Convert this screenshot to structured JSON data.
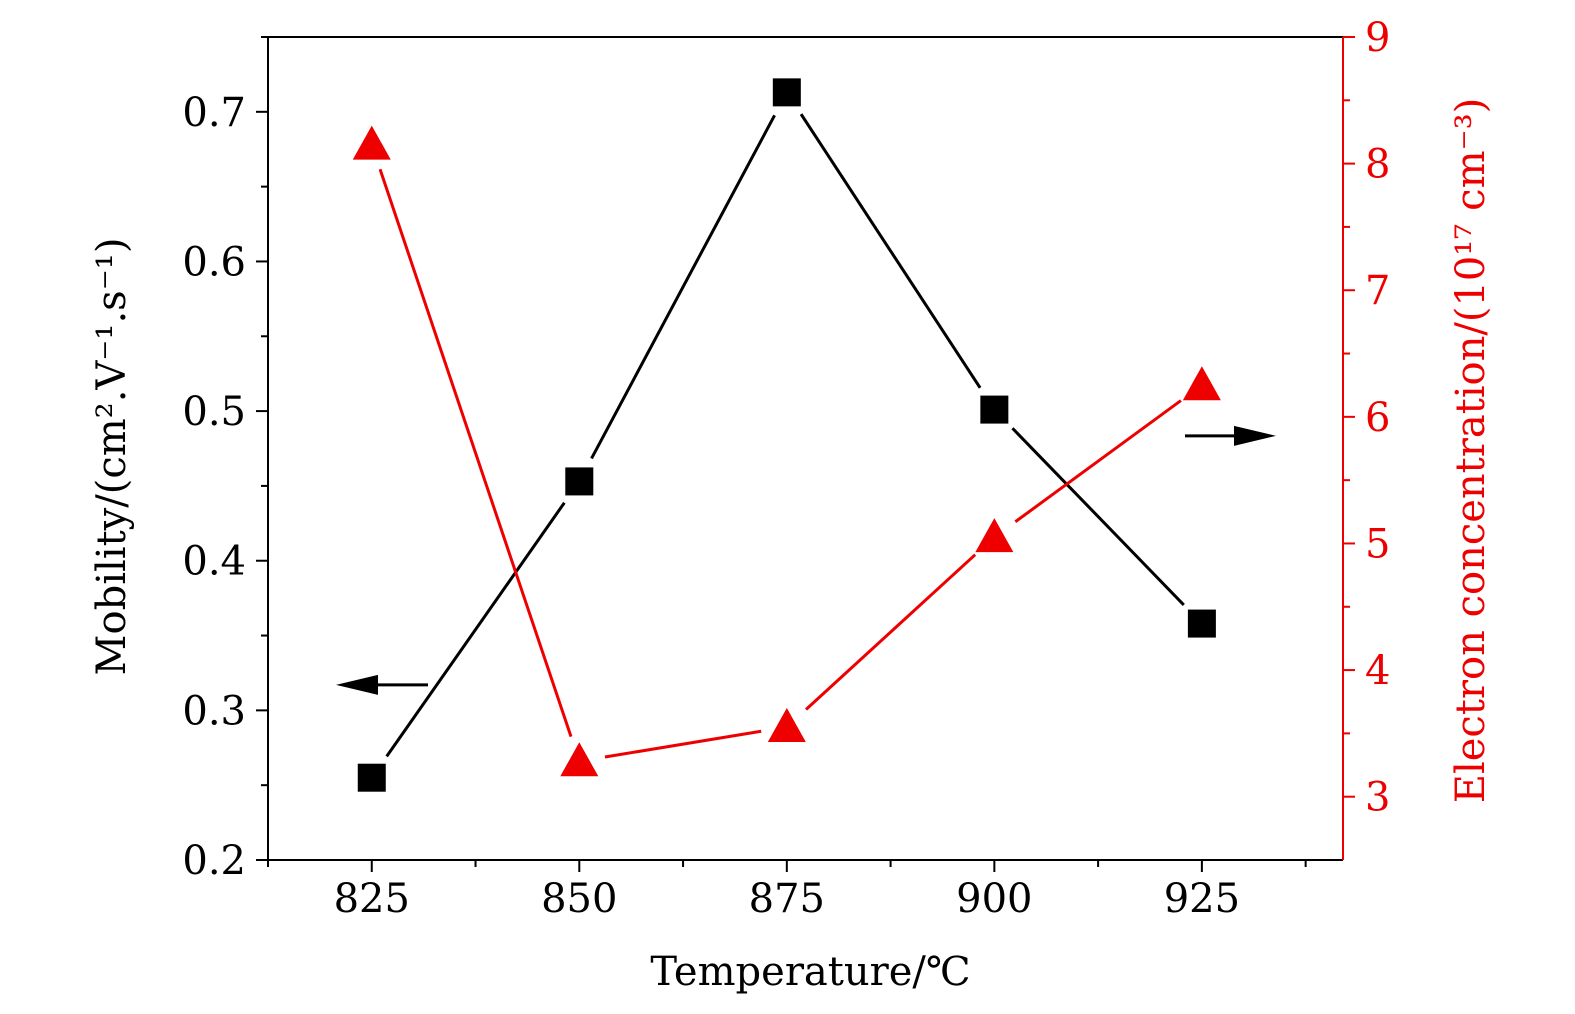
{
  "chart_data": {
    "type": "line",
    "x": [
      825,
      850,
      875,
      900,
      925
    ],
    "xlabel": "Temperature/℃",
    "xlim": [
      812.5,
      942
    ],
    "xticks": [
      825,
      850,
      875,
      900,
      925
    ],
    "ylabel_left": "Mobility/(cm².V⁻¹.s⁻¹)",
    "ylim_left": [
      0.2,
      0.75
    ],
    "yticks_left": [
      0.2,
      0.3,
      0.4,
      0.5,
      0.6,
      0.7
    ],
    "ylabel_right": "Electron concentration/(10¹⁷ cm⁻³)",
    "ylim_right": [
      2.5,
      9
    ],
    "yticks_right": [
      3,
      4,
      5,
      6,
      7,
      8,
      9
    ],
    "grid": false,
    "legend": "none",
    "series": [
      {
        "axis": "left",
        "marker": "square",
        "color": "#000000",
        "values": [
          0.255,
          0.453,
          0.713,
          0.501,
          0.358
        ]
      },
      {
        "axis": "right",
        "marker": "triangle",
        "color": "#ee0000",
        "values": [
          8.15,
          3.28,
          3.55,
          5.05,
          6.25
        ]
      }
    ]
  }
}
